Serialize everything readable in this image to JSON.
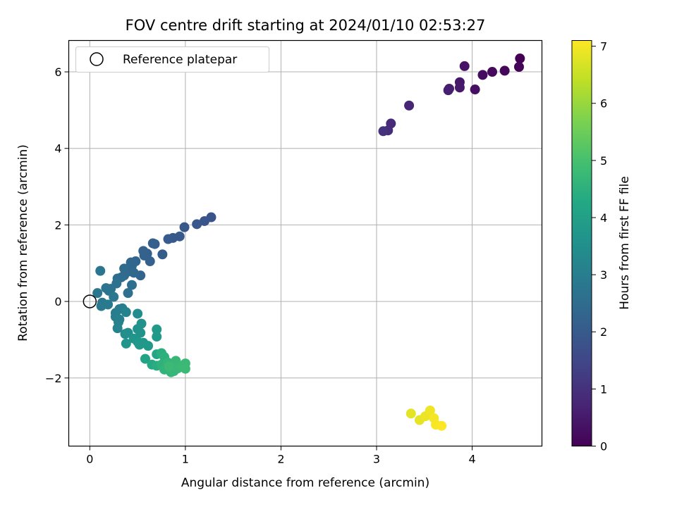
{
  "chart_data": {
    "type": "scatter",
    "title": "FOV centre drift starting at 2024/01/10 02:53:27",
    "xlabel": "Angular distance from reference (arcmin)",
    "ylabel": "Rotation from reference (arcmin)",
    "xlim": [
      -0.22,
      4.73
    ],
    "ylim": [
      -3.78,
      6.82
    ],
    "xticks": [
      0,
      1,
      2,
      3,
      4
    ],
    "yticks": [
      -2,
      0,
      2,
      4,
      6
    ],
    "xtick_labels": [
      "0",
      "1",
      "2",
      "3",
      "4"
    ],
    "ytick_labels": [
      "−2",
      "0",
      "2",
      "4",
      "6"
    ],
    "grid": true,
    "legend": {
      "placement": "top-left",
      "entries": [
        "Reference platepar"
      ]
    },
    "reference": {
      "x": 0,
      "y": 0
    },
    "colorbar": {
      "label": "Hours from first FF file",
      "colormap": "viridis",
      "range": [
        0,
        7.1
      ],
      "ticks": [
        0,
        1,
        2,
        3,
        4,
        5,
        6,
        7
      ],
      "tick_labels": [
        "0",
        "1",
        "2",
        "3",
        "4",
        "5",
        "6",
        "7"
      ]
    },
    "points": [
      {
        "x": 4.5,
        "y": 6.35,
        "h": 0.0
      },
      {
        "x": 4.49,
        "y": 6.13,
        "h": 0.06
      },
      {
        "x": 4.34,
        "y": 6.03,
        "h": 0.12
      },
      {
        "x": 4.21,
        "y": 6.0,
        "h": 0.18
      },
      {
        "x": 4.11,
        "y": 5.92,
        "h": 0.24
      },
      {
        "x": 4.03,
        "y": 5.54,
        "h": 0.3
      },
      {
        "x": 3.92,
        "y": 6.15,
        "h": 0.36
      },
      {
        "x": 3.87,
        "y": 5.73,
        "h": 0.42
      },
      {
        "x": 3.87,
        "y": 5.59,
        "h": 0.48
      },
      {
        "x": 3.76,
        "y": 5.56,
        "h": 0.54
      },
      {
        "x": 3.75,
        "y": 5.52,
        "h": 0.6
      },
      {
        "x": 3.34,
        "y": 5.12,
        "h": 0.75
      },
      {
        "x": 3.15,
        "y": 4.65,
        "h": 0.85
      },
      {
        "x": 3.12,
        "y": 4.47,
        "h": 0.92
      },
      {
        "x": 3.07,
        "y": 4.45,
        "h": 1.0
      },
      {
        "x": 1.27,
        "y": 2.2,
        "h": 1.85
      },
      {
        "x": 1.2,
        "y": 2.1,
        "h": 1.88
      },
      {
        "x": 1.12,
        "y": 2.02,
        "h": 1.91
      },
      {
        "x": 0.99,
        "y": 1.94,
        "h": 1.94
      },
      {
        "x": 0.94,
        "y": 1.7,
        "h": 1.97
      },
      {
        "x": 0.87,
        "y": 1.66,
        "h": 2.0
      },
      {
        "x": 0.82,
        "y": 1.63,
        "h": 2.03
      },
      {
        "x": 0.76,
        "y": 1.23,
        "h": 2.06
      },
      {
        "x": 0.68,
        "y": 1.5,
        "h": 2.09
      },
      {
        "x": 0.66,
        "y": 1.52,
        "h": 2.12
      },
      {
        "x": 0.6,
        "y": 1.25,
        "h": 2.15
      },
      {
        "x": 0.63,
        "y": 1.05,
        "h": 2.18
      },
      {
        "x": 0.56,
        "y": 1.32,
        "h": 2.21
      },
      {
        "x": 0.57,
        "y": 1.2,
        "h": 2.24
      },
      {
        "x": 0.53,
        "y": 0.68,
        "h": 2.27
      },
      {
        "x": 0.48,
        "y": 1.05,
        "h": 2.3
      },
      {
        "x": 0.43,
        "y": 1.02,
        "h": 2.33
      },
      {
        "x": 0.44,
        "y": 0.93,
        "h": 2.36
      },
      {
        "x": 0.46,
        "y": 0.75,
        "h": 2.39
      },
      {
        "x": 0.4,
        "y": 0.78,
        "h": 2.42
      },
      {
        "x": 0.36,
        "y": 0.86,
        "h": 2.45
      },
      {
        "x": 0.36,
        "y": 0.68,
        "h": 2.48
      },
      {
        "x": 0.33,
        "y": 0.63,
        "h": 2.51
      },
      {
        "x": 0.29,
        "y": 0.6,
        "h": 2.54
      },
      {
        "x": 0.44,
        "y": 0.43,
        "h": 2.57
      },
      {
        "x": 0.4,
        "y": 0.22,
        "h": 2.6
      },
      {
        "x": 0.28,
        "y": 0.47,
        "h": 2.63
      },
      {
        "x": 0.22,
        "y": 0.33,
        "h": 2.66
      },
      {
        "x": 0.17,
        "y": 0.35,
        "h": 2.69
      },
      {
        "x": 0.2,
        "y": 0.28,
        "h": 2.72
      },
      {
        "x": 0.11,
        "y": 0.8,
        "h": 2.75
      },
      {
        "x": 0.08,
        "y": 0.22,
        "h": 2.78
      },
      {
        "x": 0.25,
        "y": 0.12,
        "h": 2.81
      },
      {
        "x": 0.13,
        "y": -0.03,
        "h": 2.84
      },
      {
        "x": 0.12,
        "y": -0.12,
        "h": 2.87
      },
      {
        "x": 0.19,
        "y": -0.08,
        "h": 2.9
      },
      {
        "x": 0.27,
        "y": -0.3,
        "h": 2.95
      },
      {
        "x": 0.31,
        "y": -0.2,
        "h": 2.98
      },
      {
        "x": 0.34,
        "y": -0.18,
        "h": 3.01
      },
      {
        "x": 0.27,
        "y": -0.4,
        "h": 3.04
      },
      {
        "x": 0.31,
        "y": -0.47,
        "h": 3.07
      },
      {
        "x": 0.3,
        "y": -0.54,
        "h": 3.1
      },
      {
        "x": 0.38,
        "y": -0.28,
        "h": 3.13
      },
      {
        "x": 0.29,
        "y": -0.7,
        "h": 3.16
      },
      {
        "x": 0.5,
        "y": -0.32,
        "h": 3.4
      },
      {
        "x": 0.37,
        "y": -0.85,
        "h": 3.45
      },
      {
        "x": 0.4,
        "y": -0.82,
        "h": 3.5
      },
      {
        "x": 0.5,
        "y": -0.72,
        "h": 3.55
      },
      {
        "x": 0.54,
        "y": -0.58,
        "h": 3.58
      },
      {
        "x": 0.53,
        "y": -0.82,
        "h": 3.61
      },
      {
        "x": 0.46,
        "y": -0.97,
        "h": 3.64
      },
      {
        "x": 0.38,
        "y": -1.1,
        "h": 3.67
      },
      {
        "x": 0.5,
        "y": -1.05,
        "h": 3.7
      },
      {
        "x": 0.56,
        "y": -1.08,
        "h": 3.73
      },
      {
        "x": 0.52,
        "y": -1.13,
        "h": 3.76
      },
      {
        "x": 0.61,
        "y": -1.16,
        "h": 3.79
      },
      {
        "x": 0.7,
        "y": -0.73,
        "h": 3.82
      },
      {
        "x": 0.7,
        "y": -0.92,
        "h": 3.85
      },
      {
        "x": 0.58,
        "y": -1.5,
        "h": 4.1
      },
      {
        "x": 0.7,
        "y": -1.38,
        "h": 4.2
      },
      {
        "x": 0.65,
        "y": -1.65,
        "h": 4.3
      },
      {
        "x": 0.7,
        "y": -1.68,
        "h": 4.4
      },
      {
        "x": 0.75,
        "y": -1.35,
        "h": 4.45
      },
      {
        "x": 0.78,
        "y": -1.45,
        "h": 4.5
      },
      {
        "x": 0.75,
        "y": -1.65,
        "h": 4.55
      },
      {
        "x": 0.78,
        "y": -1.78,
        "h": 4.6
      },
      {
        "x": 0.82,
        "y": -1.6,
        "h": 4.62
      },
      {
        "x": 0.85,
        "y": -1.85,
        "h": 4.65
      },
      {
        "x": 0.88,
        "y": -1.82,
        "h": 4.68
      },
      {
        "x": 0.9,
        "y": -1.55,
        "h": 4.7
      },
      {
        "x": 0.92,
        "y": -1.75,
        "h": 4.72
      },
      {
        "x": 0.95,
        "y": -1.68,
        "h": 4.74
      },
      {
        "x": 1.0,
        "y": -1.62,
        "h": 4.76
      },
      {
        "x": 1.0,
        "y": -1.76,
        "h": 4.78
      },
      {
        "x": 0.83,
        "y": -1.7,
        "h": 4.8
      },
      {
        "x": 3.36,
        "y": -2.93,
        "h": 6.8
      },
      {
        "x": 3.45,
        "y": -3.1,
        "h": 6.85
      },
      {
        "x": 3.51,
        "y": -3.0,
        "h": 6.9
      },
      {
        "x": 3.56,
        "y": -2.85,
        "h": 6.95
      },
      {
        "x": 3.6,
        "y": -3.05,
        "h": 7.0
      },
      {
        "x": 3.62,
        "y": -3.22,
        "h": 7.05
      },
      {
        "x": 3.68,
        "y": -3.25,
        "h": 7.08
      }
    ]
  }
}
